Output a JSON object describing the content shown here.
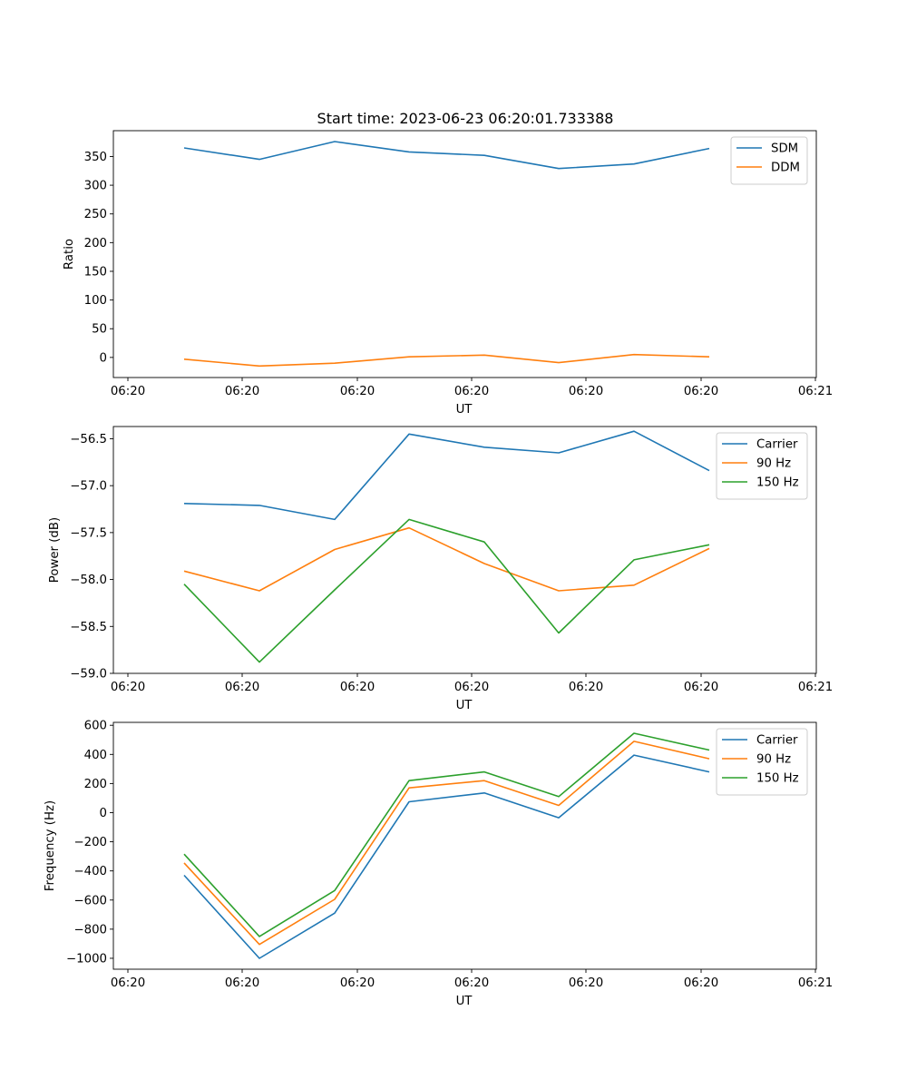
{
  "figure": {
    "title": "Start time: 2023-06-23 06:20:01.733388"
  },
  "chart_data": [
    {
      "type": "line",
      "title": "Start time: 2023-06-23 06:20:01.733388",
      "xlabel": "UT",
      "ylabel": "Ratio",
      "x_tick_labels": [
        "06:20",
        "06:20",
        "06:20",
        "06:20",
        "06:20",
        "06:20",
        "06:21"
      ],
      "y_ticks": [
        0,
        50,
        100,
        150,
        200,
        250,
        300,
        350
      ],
      "ylim": [
        -35,
        395
      ],
      "legend_position": "upper right",
      "series": [
        {
          "name": "SDM",
          "color": "#1f77b4",
          "values": [
            365,
            345,
            376,
            358,
            352,
            329,
            337,
            364
          ]
        },
        {
          "name": "DDM",
          "color": "#ff7f0e",
          "values": [
            -3,
            -15,
            -10,
            1,
            4,
            -9,
            5,
            1
          ]
        }
      ]
    },
    {
      "type": "line",
      "xlabel": "UT",
      "ylabel": "Power (dB)",
      "x_tick_labels": [
        "06:20",
        "06:20",
        "06:20",
        "06:20",
        "06:20",
        "06:20",
        "06:21"
      ],
      "y_ticks": [
        -59.0,
        -58.5,
        -58.0,
        -57.5,
        -57.0,
        -56.5
      ],
      "y_tick_labels": [
        "−59.0",
        "−58.5",
        "−58.0",
        "−57.5",
        "−57.0",
        "−56.5"
      ],
      "ylim": [
        -59.0,
        -56.37
      ],
      "legend_position": "upper right",
      "series": [
        {
          "name": "Carrier",
          "color": "#1f77b4",
          "values": [
            -57.19,
            -57.21,
            -57.36,
            -56.45,
            -56.59,
            -56.65,
            -56.42,
            -56.84
          ]
        },
        {
          "name": "90 Hz",
          "color": "#ff7f0e",
          "values": [
            -57.91,
            -58.12,
            -57.68,
            -57.45,
            -57.83,
            -58.12,
            -58.06,
            -57.67
          ]
        },
        {
          "name": "150 Hz",
          "color": "#2ca02c",
          "values": [
            -58.05,
            -58.88,
            -58.11,
            -57.36,
            -57.6,
            -58.57,
            -57.79,
            -57.63
          ]
        }
      ]
    },
    {
      "type": "line",
      "xlabel": "UT",
      "ylabel": "Frequency (Hz)",
      "x_tick_labels": [
        "06:20",
        "06:20",
        "06:20",
        "06:20",
        "06:20",
        "06:20",
        "06:21"
      ],
      "y_ticks": [
        -1000,
        -800,
        -600,
        -400,
        -200,
        0,
        200,
        400,
        600
      ],
      "y_tick_labels": [
        "−1000",
        "−800",
        "−600",
        "−400",
        "−200",
        "0",
        "200",
        "400",
        "600"
      ],
      "ylim": [
        -1075,
        620
      ],
      "legend_position": "upper right",
      "series": [
        {
          "name": "Carrier",
          "color": "#1f77b4",
          "values": [
            -430,
            -1000,
            -690,
            75,
            135,
            -35,
            395,
            280
          ]
        },
        {
          "name": "90 Hz",
          "color": "#ff7f0e",
          "values": [
            -345,
            -905,
            -595,
            170,
            220,
            50,
            490,
            370
          ]
        },
        {
          "name": "150 Hz",
          "color": "#2ca02c",
          "values": [
            -285,
            -850,
            -535,
            220,
            280,
            110,
            545,
            430
          ]
        }
      ]
    }
  ]
}
